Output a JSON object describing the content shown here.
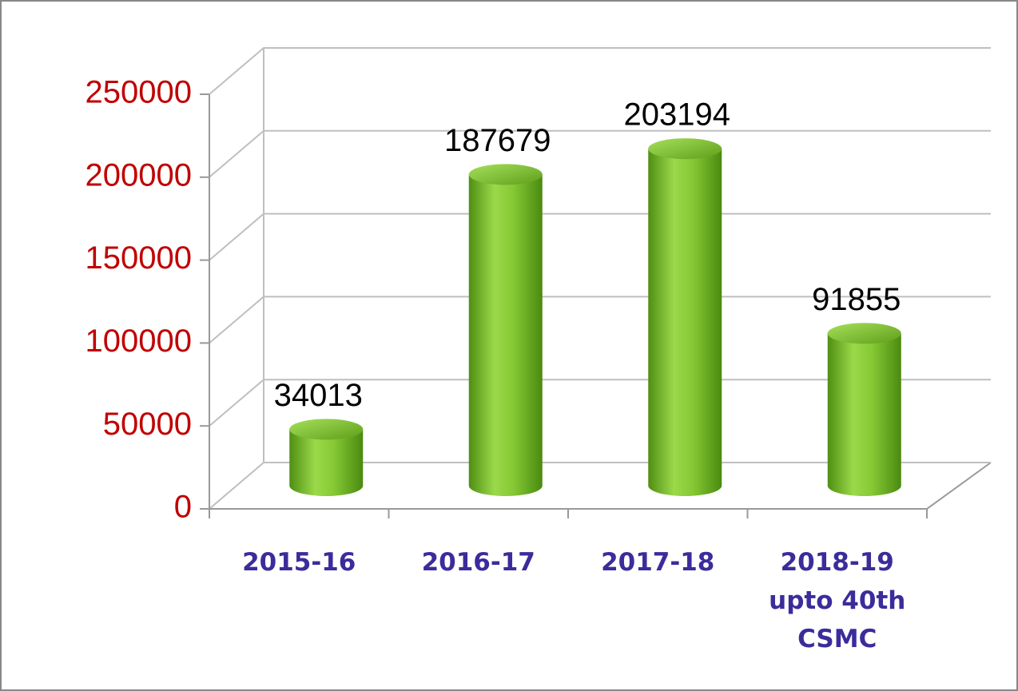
{
  "chart_data": {
    "type": "bar3d",
    "categories": [
      "2015-16",
      "2016-17",
      "2017-18",
      "2018-19\nupto 40th\nCSMC"
    ],
    "values": [
      34013,
      187679,
      203194,
      91855
    ],
    "color": "#7cc12e",
    "ylim": [
      0,
      250000
    ],
    "yticks": [
      0,
      50000,
      100000,
      150000,
      200000,
      250000
    ],
    "grid": true
  }
}
